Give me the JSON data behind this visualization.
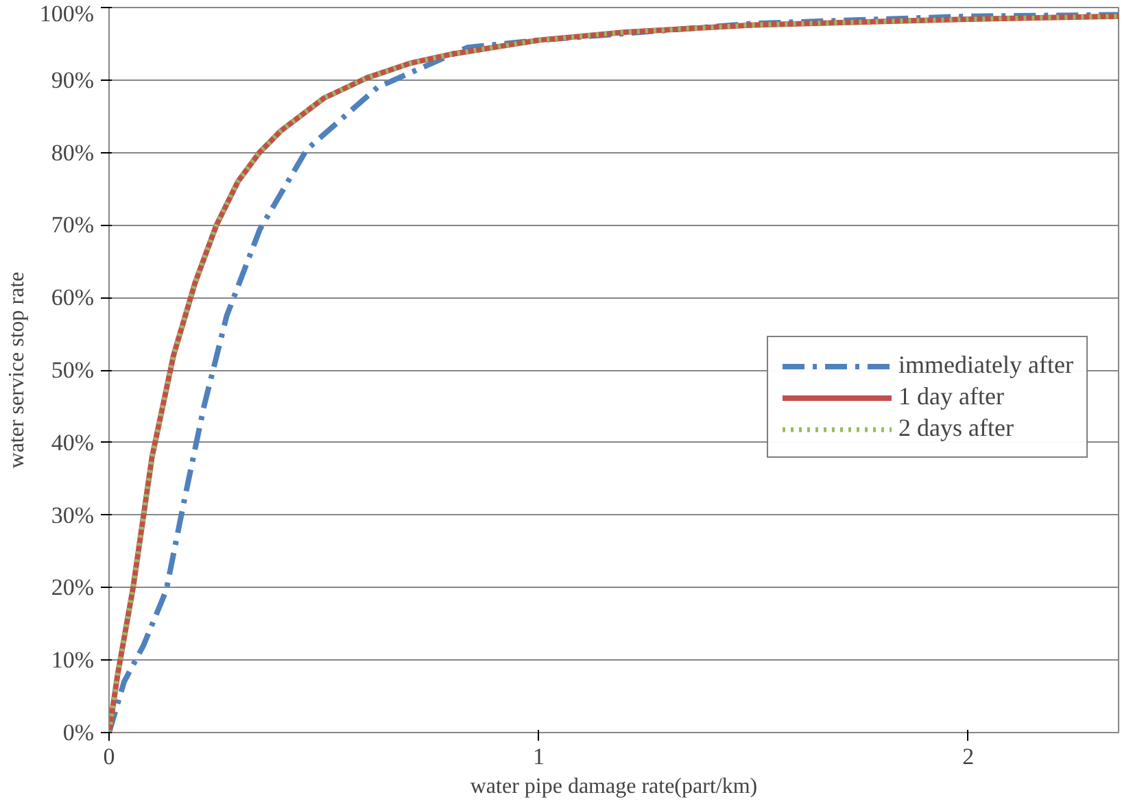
{
  "chart_data": {
    "type": "line",
    "xlabel": "water pipe damage rate(part/km)",
    "ylabel": "water service stop rate",
    "xlim": [
      0,
      2.35
    ],
    "xticks": [
      0,
      1,
      2
    ],
    "ylim": [
      0,
      1
    ],
    "yticks": [
      {
        "value": 0,
        "label": "0%"
      },
      {
        "value": 0.1,
        "label": "10%"
      },
      {
        "value": 0.2,
        "label": "20%"
      },
      {
        "value": 0.3,
        "label": "30%"
      },
      {
        "value": 0.4,
        "label": "40%"
      },
      {
        "value": 0.5,
        "label": "50%"
      },
      {
        "value": 0.6,
        "label": "60%"
      },
      {
        "value": 0.7,
        "label": "70%"
      },
      {
        "value": 0.8,
        "label": "80%"
      },
      {
        "value": 0.9,
        "label": "90%"
      },
      {
        "value": 1,
        "label": "100%"
      }
    ],
    "grid": "y",
    "legend": "right",
    "marker": "none",
    "series": [
      {
        "name": "immediately after",
        "color": "#4f81bd",
        "line_style": "dashdot",
        "x": [
          0,
          0.035,
          0.08,
          0.133,
          0.175,
          0.221,
          0.274,
          0.351,
          0.46,
          0.625,
          0.835,
          1.0,
          1.5,
          2.0,
          2.35
        ],
        "values": [
          0,
          0.07,
          0.12,
          0.196,
          0.32,
          0.45,
          0.575,
          0.694,
          0.804,
          0.89,
          0.945,
          0.955,
          0.978,
          0.988,
          0.99
        ]
      },
      {
        "name": "1 day after",
        "color": "#c0504d",
        "line_style": "solid",
        "x": [
          0,
          0.02,
          0.056,
          0.1,
          0.15,
          0.2,
          0.25,
          0.3,
          0.35,
          0.4,
          0.5,
          0.6,
          0.7,
          0.8,
          1.0,
          1.2,
          1.5,
          2.0,
          2.35
        ],
        "values": [
          0,
          0.08,
          0.2,
          0.38,
          0.52,
          0.62,
          0.7,
          0.76,
          0.8,
          0.83,
          0.875,
          0.903,
          0.923,
          0.936,
          0.955,
          0.966,
          0.976,
          0.984,
          0.988
        ]
      },
      {
        "name": "2 days after",
        "color": "#9bbb59",
        "line_style": "dotted",
        "x": [
          0,
          0.02,
          0.056,
          0.1,
          0.15,
          0.2,
          0.25,
          0.3,
          0.35,
          0.4,
          0.5,
          0.6,
          0.7,
          0.8,
          1.0,
          1.2,
          1.5,
          2.0,
          2.35
        ],
        "values": [
          0,
          0.08,
          0.2,
          0.38,
          0.52,
          0.62,
          0.7,
          0.76,
          0.8,
          0.83,
          0.875,
          0.903,
          0.923,
          0.936,
          0.955,
          0.966,
          0.976,
          0.984,
          0.988
        ]
      }
    ]
  }
}
